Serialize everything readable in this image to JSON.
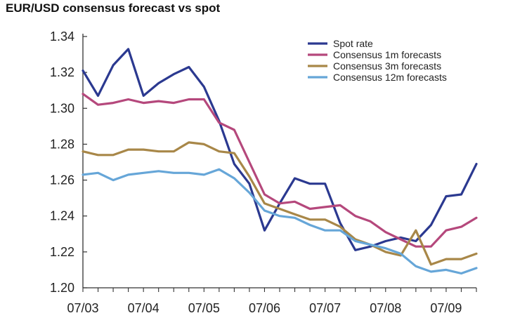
{
  "chart_data": {
    "type": "line",
    "title": "EUR/USD consensus forecast vs spot",
    "xlabel": "",
    "ylabel": "",
    "ylim": [
      1.2,
      1.34
    ],
    "y_ticks": [
      "1.20",
      "1.22",
      "1.24",
      "1.26",
      "1.28",
      "1.30",
      "1.32",
      "1.34"
    ],
    "x_ticks": [
      "07/03",
      "07/04",
      "07/05",
      "07/06",
      "07/07",
      "07/08",
      "07/09"
    ],
    "x_start": "2003-07",
    "legend_position": "top-right",
    "grid": false,
    "series": [
      {
        "name": "Spot rate",
        "color": "#2b3990",
        "values": [
          1.321,
          1.307,
          1.324,
          1.333,
          1.307,
          1.314,
          1.319,
          1.323,
          1.312,
          1.293,
          1.269,
          1.258,
          1.232,
          1.247,
          1.261,
          1.258,
          1.258,
          1.236,
          1.221,
          1.223,
          1.226,
          1.228,
          1.226,
          1.235,
          1.251,
          1.252,
          1.269
        ]
      },
      {
        "name": "Consensus 1m forecasts",
        "color": "#b5487c",
        "values": [
          1.308,
          1.302,
          1.303,
          1.305,
          1.303,
          1.304,
          1.303,
          1.305,
          1.305,
          1.292,
          1.288,
          1.27,
          1.252,
          1.247,
          1.248,
          1.244,
          1.245,
          1.246,
          1.24,
          1.237,
          1.231,
          1.227,
          1.223,
          1.223,
          1.232,
          1.234,
          1.239
        ]
      },
      {
        "name": "Consensus 3m forecasts",
        "color": "#a88748",
        "values": [
          1.276,
          1.274,
          1.274,
          1.277,
          1.277,
          1.276,
          1.276,
          1.281,
          1.28,
          1.276,
          1.275,
          1.262,
          1.247,
          1.244,
          1.241,
          1.238,
          1.238,
          1.234,
          1.227,
          1.224,
          1.22,
          1.218,
          1.232,
          1.213,
          1.216,
          1.216,
          1.219
        ]
      },
      {
        "name": "Consensus 12m forecasts",
        "color": "#66a6d8",
        "values": [
          1.263,
          1.264,
          1.26,
          1.263,
          1.264,
          1.265,
          1.264,
          1.264,
          1.263,
          1.266,
          1.261,
          1.253,
          1.243,
          1.24,
          1.239,
          1.235,
          1.232,
          1.232,
          1.226,
          1.224,
          1.222,
          1.219,
          1.212,
          1.209,
          1.21,
          1.208,
          1.211
        ]
      }
    ]
  }
}
